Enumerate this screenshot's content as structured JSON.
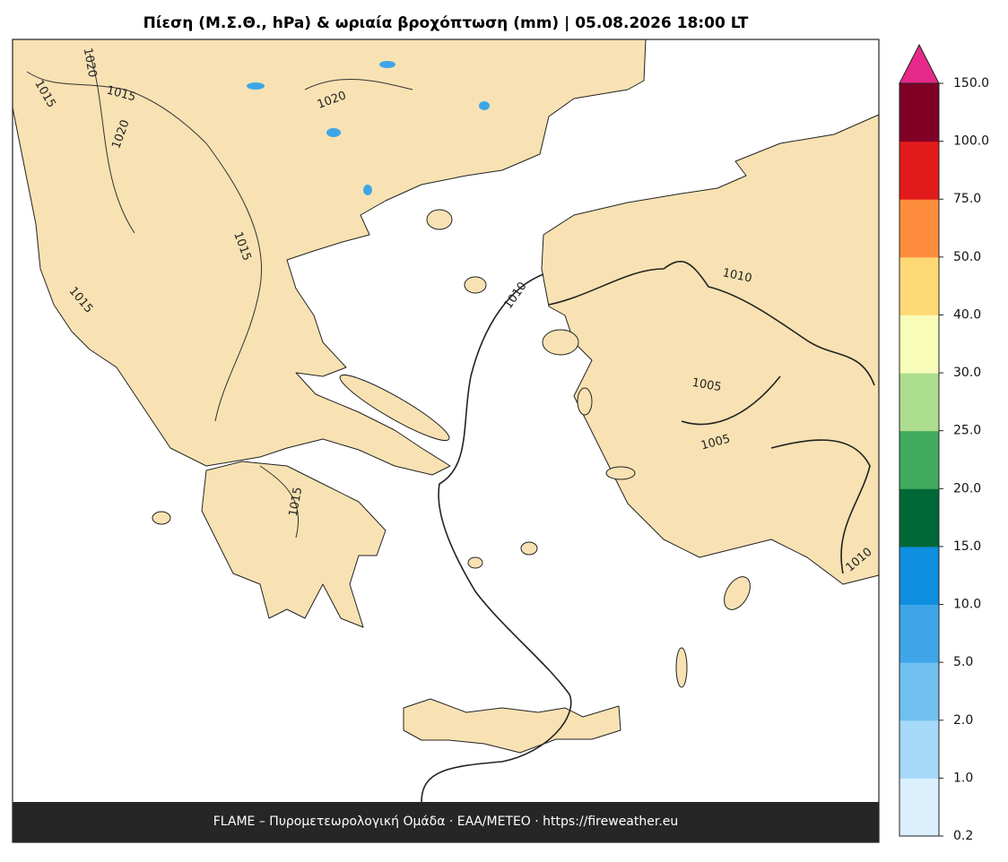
{
  "title": "Πίεση (Μ.Σ.Θ., hPa) & ωριαία βροχόπτωση (mm)  |  05.08.2026 18:00 LT",
  "footer": "FLAME – Πυρομετεωρολογική Ομάδα · ΕΑΑ/METEO · https://fireweather.eu",
  "contour_labels": [
    1020,
    1015,
    1015,
    1020,
    1020,
    1015,
    1015,
    1015,
    1010,
    1010,
    1005,
    1005,
    1010
  ],
  "colorbar": {
    "ticks": [
      0.2,
      {
        "value": 1,
        "label": "1.0"
      },
      {
        "value": 2,
        "label": "2.0"
      },
      {
        "value": 5,
        "label": "5.0"
      },
      {
        "value": 10,
        "label": "10.0"
      },
      {
        "value": 15,
        "label": "15.0"
      },
      {
        "value": 20,
        "label": "20.0"
      },
      {
        "value": 25,
        "label": "25.0"
      },
      {
        "value": 30,
        "label": "30.0"
      },
      {
        "value": 40,
        "label": "40.0"
      },
      {
        "value": 50,
        "label": "50.0"
      },
      {
        "value": 75,
        "label": "75.0"
      },
      {
        "value": 100,
        "label": "100.0"
      },
      {
        "value": 150,
        "label": "150.0"
      }
    ],
    "colors": [
      "#dbeffd",
      "#a6d8f7",
      "#70c0f0",
      "#3ea6e8",
      "#0f8fdf",
      "#006837",
      "#41ab5d",
      "#addd8e",
      "#f7fcb9",
      "#fed976",
      "#fd8d3c",
      "#e31a1c",
      "#800026"
    ],
    "extend_color": "#e7298a"
  }
}
